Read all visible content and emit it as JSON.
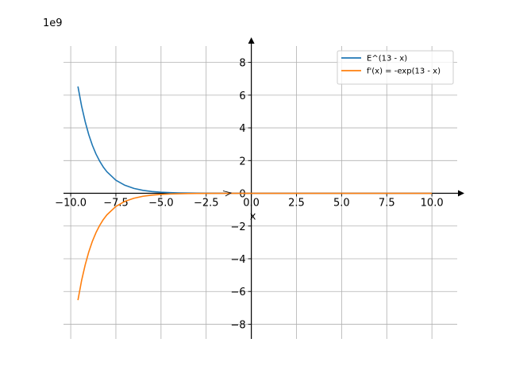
{
  "chart_data": {
    "type": "line",
    "title": "",
    "xlabel": "x",
    "ylabel": "",
    "y_scale_label": "1e9",
    "xlim": [
      -10.4,
      11.4
    ],
    "ylim": [
      -8.9,
      9.0
    ],
    "grid": true,
    "legend_placement": "top-right",
    "x_ticks": [
      -10,
      -7.5,
      -5,
      -2.5,
      0,
      2.5,
      5,
      7.5,
      10
    ],
    "x_tick_labels": [
      "−10.0",
      "−7.5",
      "−5.0",
      "−2.5",
      "0.0",
      "2.5",
      "5.0",
      "7.5",
      "10.0"
    ],
    "y_ticks": [
      -8,
      -6,
      -4,
      -2,
      0,
      2,
      4,
      6,
      8
    ],
    "y_tick_labels": [
      "−8",
      "−6",
      "−4",
      "−2",
      "0",
      "2",
      "4",
      "6",
      "8"
    ],
    "series": [
      {
        "name": "E^(13 - x)",
        "color": "#1f77b4",
        "x": [
          -9.6,
          -9.4,
          -9.2,
          -9.0,
          -8.8,
          -8.6,
          -8.4,
          -8.2,
          -8.0,
          -7.5,
          -7.0,
          -6.5,
          -6.0,
          -5.5,
          -5.0,
          -4.5,
          -4.0,
          -3.5,
          -3.0,
          -2.0,
          -1.0,
          0.0,
          2.0,
          4.0,
          6.0,
          8.0,
          10.0
        ],
        "y": [
          6.53,
          5.34,
          4.38,
          3.58,
          2.93,
          2.4,
          1.97,
          1.61,
          1.32,
          0.8,
          0.49,
          0.3,
          0.18,
          0.109,
          0.066,
          0.04,
          0.024,
          0.0147,
          0.0089,
          0.0033,
          0.0012,
          0.00044,
          6e-05,
          8e-06,
          1.1e-06,
          1.5e-07,
          2e-08
        ]
      },
      {
        "name": "f'(x) = -exp(13 - x)",
        "color": "#ff7f0e",
        "x": [
          -9.6,
          -9.4,
          -9.2,
          -9.0,
          -8.8,
          -8.6,
          -8.4,
          -8.2,
          -8.0,
          -7.5,
          -7.0,
          -6.5,
          -6.0,
          -5.5,
          -5.0,
          -4.5,
          -4.0,
          -3.5,
          -3.0,
          -2.0,
          -1.0,
          0.0,
          2.0,
          4.0,
          6.0,
          8.0,
          10.0
        ],
        "y": [
          -6.53,
          -5.34,
          -4.38,
          -3.58,
          -2.93,
          -2.4,
          -1.97,
          -1.61,
          -1.32,
          -0.8,
          -0.49,
          -0.3,
          -0.18,
          -0.109,
          -0.066,
          -0.04,
          -0.024,
          -0.0147,
          -0.0089,
          -0.0033,
          -0.0012,
          -0.00044,
          -6e-05,
          -8e-06,
          -1.1e-06,
          -1.5e-07,
          -2e-08
        ]
      }
    ]
  }
}
